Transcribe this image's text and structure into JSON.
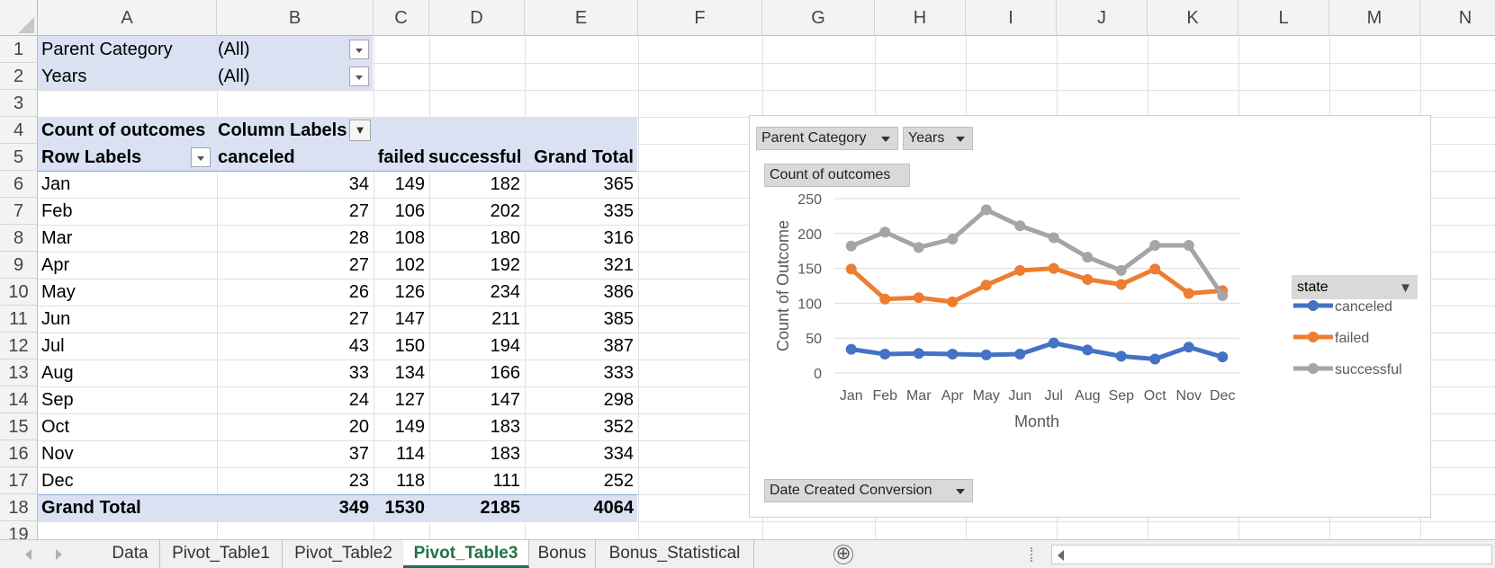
{
  "columns": [
    "A",
    "B",
    "C",
    "D",
    "E",
    "F",
    "G",
    "H",
    "I",
    "J",
    "K",
    "L",
    "M",
    "N"
  ],
  "rows": [
    "1",
    "2",
    "3",
    "4",
    "5",
    "6",
    "7",
    "8",
    "9",
    "10",
    "11",
    "12",
    "13",
    "14",
    "15",
    "16",
    "17",
    "18",
    "19"
  ],
  "filters": [
    {
      "label": "Parent Category",
      "value": "(All)"
    },
    {
      "label": "Years",
      "value": "(All)"
    }
  ],
  "pivot": {
    "value_label": "Count of outcomes",
    "column_labels": "Column Labels",
    "row_labels": "Row Labels",
    "headers": [
      "canceled",
      "failed",
      "successful",
      "Grand Total"
    ],
    "rows": [
      {
        "month": "Jan",
        "values": [
          "34",
          "149",
          "182",
          "365"
        ]
      },
      {
        "month": "Feb",
        "values": [
          "27",
          "106",
          "202",
          "335"
        ]
      },
      {
        "month": "Mar",
        "values": [
          "28",
          "108",
          "180",
          "316"
        ]
      },
      {
        "month": "Apr",
        "values": [
          "27",
          "102",
          "192",
          "321"
        ]
      },
      {
        "month": "May",
        "values": [
          "26",
          "126",
          "234",
          "386"
        ]
      },
      {
        "month": "Jun",
        "values": [
          "27",
          "147",
          "211",
          "385"
        ]
      },
      {
        "month": "Jul",
        "values": [
          "43",
          "150",
          "194",
          "387"
        ]
      },
      {
        "month": "Aug",
        "values": [
          "33",
          "134",
          "166",
          "333"
        ]
      },
      {
        "month": "Sep",
        "values": [
          "24",
          "127",
          "147",
          "298"
        ]
      },
      {
        "month": "Oct",
        "values": [
          "20",
          "149",
          "183",
          "352"
        ]
      },
      {
        "month": "Nov",
        "values": [
          "37",
          "114",
          "183",
          "334"
        ]
      },
      {
        "month": "Dec",
        "values": [
          "23",
          "118",
          "111",
          "252"
        ]
      }
    ],
    "total_label": "Grand Total",
    "totals": [
      "349",
      "1530",
      "2185",
      "4064"
    ]
  },
  "chart": {
    "filter_buttons": [
      "Parent Category",
      "Years"
    ],
    "value_button": "Count of outcomes",
    "axis_button": "Date Created Conversion",
    "legend_button": "state"
  },
  "chart_data": {
    "type": "line",
    "x": [
      "Jan",
      "Feb",
      "Mar",
      "Apr",
      "May",
      "Jun",
      "Jul",
      "Aug",
      "Sep",
      "Oct",
      "Nov",
      "Dec"
    ],
    "series": [
      {
        "name": "canceled",
        "color": "#4472c4",
        "values": [
          34,
          27,
          28,
          27,
          26,
          27,
          43,
          33,
          24,
          20,
          37,
          23
        ]
      },
      {
        "name": "failed",
        "color": "#ed7d31",
        "values": [
          149,
          106,
          108,
          102,
          126,
          147,
          150,
          134,
          127,
          149,
          114,
          118
        ]
      },
      {
        "name": "successful",
        "color": "#a5a5a5",
        "values": [
          182,
          202,
          180,
          192,
          234,
          211,
          194,
          166,
          147,
          183,
          183,
          111
        ]
      }
    ],
    "yticks": [
      "0",
      "50",
      "100",
      "150",
      "200",
      "250"
    ],
    "ylim": [
      0,
      250
    ],
    "xlabel": "Month",
    "ylabel": "Count of Outcome",
    "grid": true,
    "legend_position": "right"
  },
  "tabs": [
    "Data",
    "Pivot_Table1",
    "Pivot_Table2",
    "Pivot_Table3",
    "Bonus",
    "Bonus_Statistical"
  ],
  "active_tab": "Pivot_Table3",
  "add_sheet_glyph": "⊕"
}
